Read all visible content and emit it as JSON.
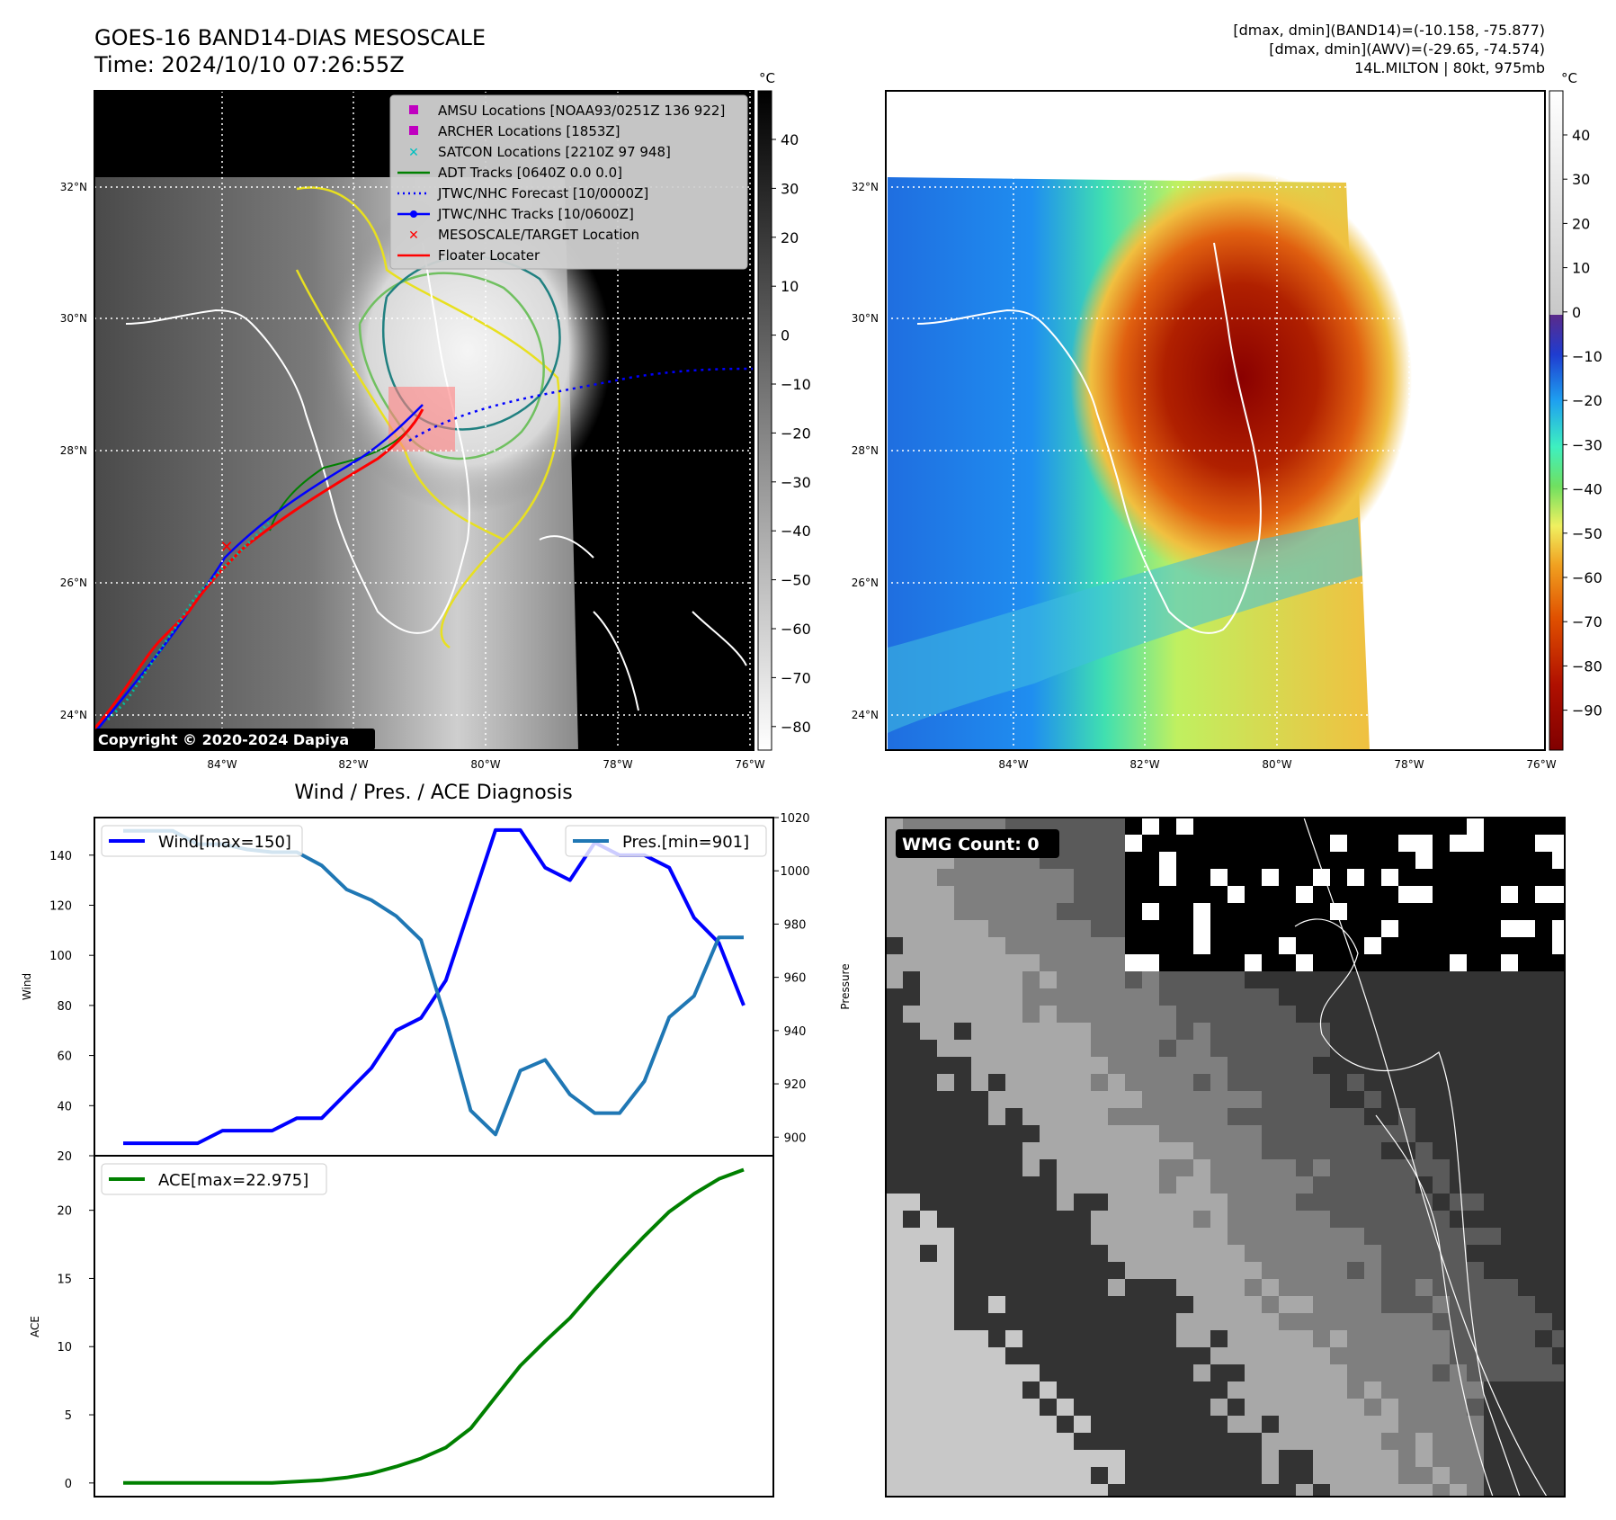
{
  "header": {
    "title_line1": "GOES-16 BAND14-DIAS MESOSCALE",
    "title_line2": "Time: 2024/10/10 07:26:55Z",
    "info_line1": "[dmax, dmin](BAND14)=(-10.158, -75.877)",
    "info_line2": "[dmax, dmin](AWV)=(-29.65, -74.574)",
    "info_line3": "14L.MILTON | 80kt, 975mb"
  },
  "map": {
    "lat_labels": [
      "32°N",
      "30°N",
      "28°N",
      "26°N",
      "24°N"
    ],
    "lon_labels": [
      "84°W",
      "82°W",
      "80°W",
      "78°W",
      "76°W"
    ],
    "copyright": "Copyright © 2020-2024 Dapiya",
    "legend": [
      {
        "label": "AMSU Locations [NOAA93/0251Z 136 922]",
        "color": "#c000c0",
        "marker": "square"
      },
      {
        "label": "ARCHER Locations [1853Z]",
        "color": "#c000c0",
        "marker": "square"
      },
      {
        "label": "SATCON Locations [2210Z 97 948]",
        "color": "#00c0c0",
        "marker": "x"
      },
      {
        "label": "ADT Tracks [0640Z 0.0 0.0]",
        "color": "#008000",
        "marker": "line"
      },
      {
        "label": "JTWC/NHC Forecast [10/0000Z]",
        "color": "#0000ff",
        "marker": "dotted"
      },
      {
        "label": "JTWC/NHC Tracks [10/0600Z]",
        "color": "#0000ff",
        "marker": "line-dot"
      },
      {
        "label": "MESOSCALE/TARGET Location",
        "color": "#ff0000",
        "marker": "x"
      },
      {
        "label": "Floater Locater",
        "color": "#ff0000",
        "marker": "line"
      }
    ]
  },
  "colorbar_gray": {
    "unit": "°C",
    "ticks": [
      "40",
      "30",
      "20",
      "10",
      "0",
      "−10",
      "−20",
      "−30",
      "−40",
      "−50",
      "−60",
      "−70",
      "−80"
    ]
  },
  "colorbar_color": {
    "unit": "°C",
    "ticks": [
      "40",
      "30",
      "20",
      "10",
      "0",
      "−10",
      "−20",
      "−30",
      "−40",
      "−50",
      "−60",
      "−70",
      "−80",
      "−90"
    ]
  },
  "wmg": {
    "label": "WMG Count: 0"
  },
  "colors": {
    "wind": "#0000ff",
    "pressure": "#1f77b4",
    "ace": "#008000"
  },
  "chart_data": [
    {
      "type": "line",
      "title": "Wind / Pres. / ACE Diagnosis",
      "ylabel": "Wind",
      "y2label": "Pressure",
      "ylim": [
        20,
        155
      ],
      "y2lim": [
        893,
        1020
      ],
      "yticks": [
        20,
        40,
        60,
        80,
        100,
        120,
        140
      ],
      "y2ticks": [
        900,
        920,
        940,
        960,
        980,
        1000,
        1020
      ],
      "series": [
        {
          "name": "Wind[max=150]",
          "axis": "left",
          "values": [
            25,
            25,
            25,
            25,
            30,
            30,
            30,
            35,
            35,
            45,
            55,
            70,
            75,
            90,
            120,
            150,
            150,
            135,
            130,
            145,
            140,
            140,
            135,
            115,
            105,
            80
          ]
        },
        {
          "name": "Pres.[min=901]",
          "axis": "right",
          "values": [
            1015,
            1015,
            1015,
            1010,
            1010,
            1008,
            1007,
            1007,
            1002,
            993,
            989,
            983,
            974,
            944,
            910,
            901,
            925,
            929,
            916,
            909,
            909,
            921,
            945,
            953,
            975,
            975
          ]
        }
      ]
    },
    {
      "type": "line",
      "ylabel": "ACE",
      "ylim": [
        -1,
        24
      ],
      "yticks": [
        0,
        5,
        10,
        15,
        20
      ],
      "series": [
        {
          "name": "ACE[max=22.975]",
          "values": [
            0,
            0,
            0,
            0,
            0,
            0,
            0,
            0.1,
            0.2,
            0.4,
            0.7,
            1.2,
            1.8,
            2.6,
            4.0,
            6.3,
            8.6,
            10.4,
            12.1,
            14.2,
            16.2,
            18.1,
            19.9,
            21.2,
            22.3,
            22.975
          ]
        }
      ]
    }
  ]
}
